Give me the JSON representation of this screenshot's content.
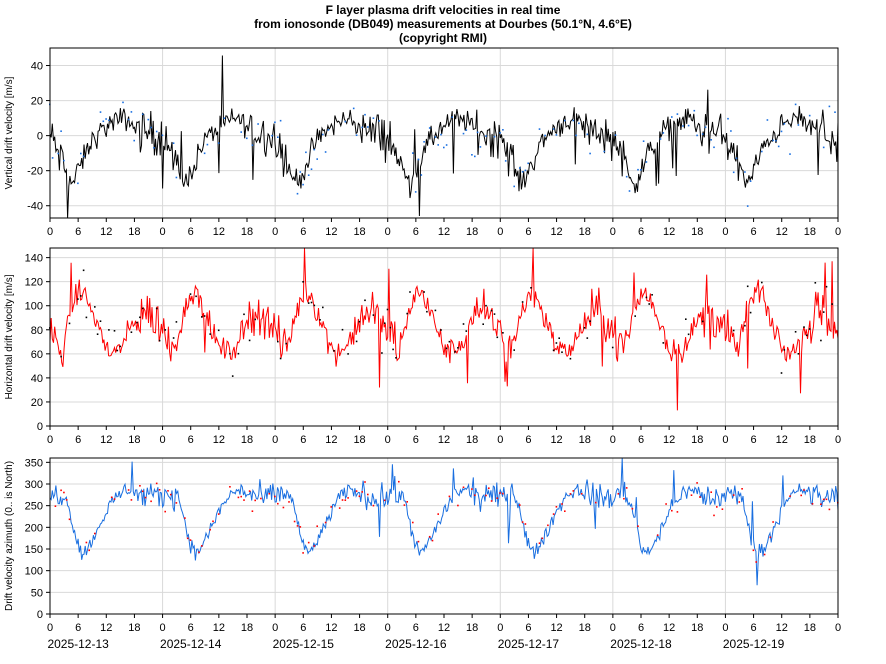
{
  "title": {
    "line1": "F layer plasma drift velocities in real time",
    "line2": "from ionosonde (DB049) measurements at Dourbes (50.1°N, 4.6°E)",
    "line3": "(copyright RMI)"
  },
  "chart_data": [
    {
      "type": "line",
      "name": "vertical-drift",
      "ylabel": "Vertical drift velocity [m/s]",
      "ylim": [
        -47,
        50
      ],
      "yticks": [
        -40,
        -20,
        0,
        20,
        40
      ],
      "grid": true,
      "series": [
        {
          "name": "smoothed",
          "color": "#000000",
          "style": "line"
        },
        {
          "name": "measurements",
          "color": "#1a6fe0",
          "style": "dots"
        }
      ],
      "diurnal_profile": {
        "hours": [
          0,
          1,
          2,
          3,
          4,
          5,
          6,
          7,
          8,
          9,
          10,
          11,
          12,
          13,
          14,
          15,
          16,
          17,
          18,
          19,
          20,
          21,
          22,
          23
        ],
        "values": [
          0,
          -5,
          -12,
          -18,
          -25,
          -27,
          -20,
          -14,
          -8,
          -3,
          0,
          3,
          5,
          7,
          8,
          9,
          10,
          8,
          5,
          3,
          2,
          2,
          1,
          0
        ]
      },
      "noise_amplitude": 10
    },
    {
      "type": "line",
      "name": "horizontal-drift",
      "ylabel": "Horizontal drift velocity [m/s]",
      "ylim": [
        0,
        148
      ],
      "yticks": [
        0,
        20,
        40,
        60,
        80,
        100,
        120,
        140
      ],
      "grid": true,
      "series": [
        {
          "name": "smoothed",
          "color": "#ff0000",
          "style": "line"
        },
        {
          "name": "measurements",
          "color": "#000000",
          "style": "dots"
        }
      ],
      "diurnal_profile": {
        "hours": [
          0,
          1,
          2,
          3,
          4,
          5,
          6,
          7,
          8,
          9,
          10,
          11,
          12,
          13,
          14,
          15,
          16,
          17,
          18,
          19,
          20,
          21,
          22,
          23
        ],
        "values": [
          80,
          70,
          65,
          70,
          85,
          100,
          110,
          112,
          105,
          95,
          85,
          75,
          65,
          62,
          62,
          65,
          70,
          80,
          85,
          90,
          95,
          95,
          90,
          85
        ]
      },
      "noise_amplitude": 15
    },
    {
      "type": "line",
      "name": "drift-azimuth",
      "ylabel": "Drift velocity azimuth (0.. is North)",
      "ylim": [
        0,
        360
      ],
      "yticks": [
        0,
        50,
        100,
        150,
        200,
        250,
        300,
        350
      ],
      "grid": true,
      "series": [
        {
          "name": "smoothed",
          "color": "#1a6fe0",
          "style": "line"
        },
        {
          "name": "measurements",
          "color": "#ff0000",
          "style": "dots"
        }
      ],
      "diurnal_profile": {
        "hours": [
          0,
          1,
          2,
          3,
          4,
          5,
          6,
          7,
          8,
          9,
          10,
          11,
          12,
          13,
          14,
          15,
          16,
          17,
          18,
          19,
          20,
          21,
          22,
          23
        ],
        "values": [
          270,
          275,
          280,
          275,
          250,
          200,
          160,
          140,
          150,
          170,
          190,
          215,
          235,
          255,
          270,
          280,
          285,
          285,
          280,
          275,
          270,
          268,
          268,
          270
        ]
      },
      "noise_amplitude": 25
    }
  ],
  "x_axis": {
    "hour_ticks": [
      "0",
      "6",
      "12",
      "18"
    ],
    "final_tick": "0",
    "days": [
      "2025-12-13",
      "2025-12-14",
      "2025-12-15",
      "2025-12-16",
      "2025-12-17",
      "2025-12-18",
      "2025-12-19"
    ],
    "hours_total": 168
  }
}
